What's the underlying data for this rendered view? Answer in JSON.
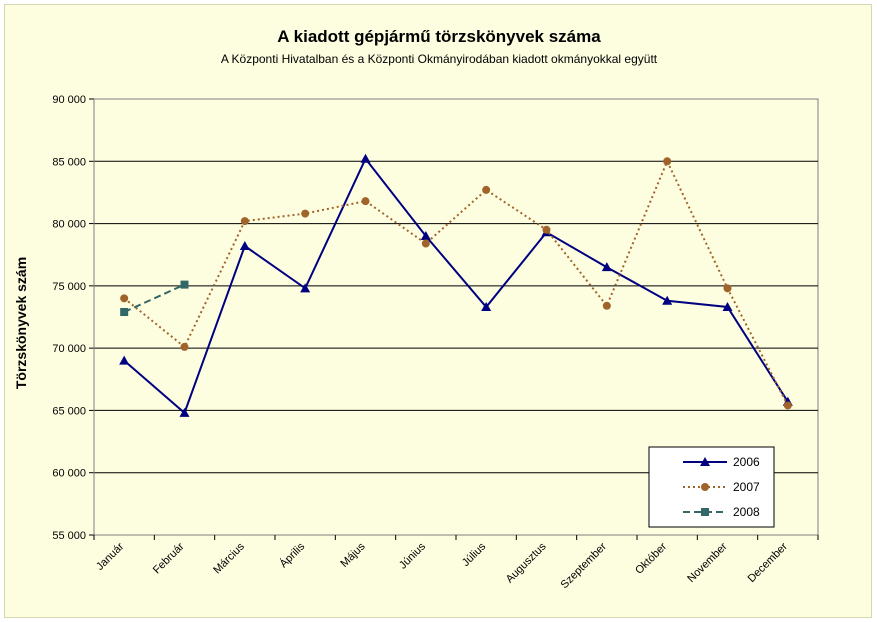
{
  "chart_data": {
    "type": "line",
    "title": "A  kiadott gépjármű  törzskönyvek száma",
    "subtitle": "A Központi Hivatalban és a Központi Okmányirodában kiadott okmányokkal együtt",
    "ylabel": "Törzskönyvek szám",
    "xlabel": "",
    "ylim": [
      55000,
      90000
    ],
    "ytick_step": 5000,
    "ytick_labels": [
      "55 000",
      "60 000",
      "65 000",
      "70 000",
      "75 000",
      "80 000",
      "85 000",
      "90 000"
    ],
    "grid": "horizontal",
    "legend_position": "bottom-right",
    "categories": [
      "Január",
      "Február",
      "Március",
      "Április",
      "Május",
      "Június",
      "Július",
      "Augusztus",
      "Szeptember",
      "Október",
      "November",
      "December"
    ],
    "series": [
      {
        "name": "2006",
        "color": "#000080",
        "marker": "triangle",
        "dash": "solid",
        "values": [
          69000,
          64800,
          78200,
          74800,
          85200,
          79000,
          73300,
          79300,
          76500,
          73800,
          73300,
          65700
        ]
      },
      {
        "name": "2007",
        "color": "#a0642a",
        "marker": "circle",
        "dash": "dotted",
        "values": [
          74000,
          70100,
          80200,
          80800,
          81800,
          78400,
          82700,
          79500,
          73400,
          85000,
          74800,
          65400
        ]
      },
      {
        "name": "2008",
        "color": "#336666",
        "marker": "square",
        "dash": "dashed",
        "values": [
          72900,
          75100,
          null,
          null,
          null,
          null,
          null,
          null,
          null,
          null,
          null,
          null
        ]
      }
    ]
  }
}
